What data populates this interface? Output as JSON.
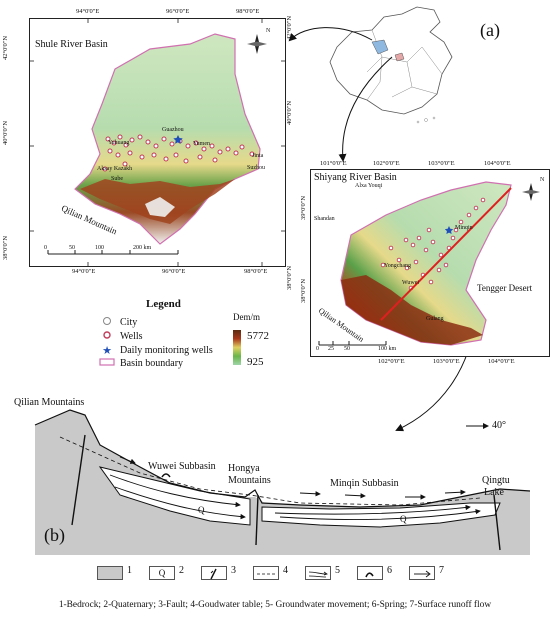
{
  "panel_labels": {
    "a": "(a)",
    "b": "(b)"
  },
  "shule": {
    "title": "Shule River Basin",
    "lon_ticks": [
      "94°0'0\"E",
      "96°0'0\"E",
      "98°0'0\"E"
    ],
    "lat_ticks": [
      "42°0'0\"N",
      "40°0'0\"N",
      "38°0'0\"N"
    ],
    "places": {
      "guazhou": "Guazhou",
      "yumen": "Yumen",
      "yuhuang": "Yuhuang",
      "jinta": "Jinta",
      "suzhou": "Suzhou",
      "akesai": "Aksay Kazakh",
      "sube": "Sube",
      "qilian": "Qilian Mountain"
    },
    "scale": {
      "zero": "0",
      "s50": "50",
      "s100": "100",
      "s200": "200 km"
    },
    "north": "N"
  },
  "shiyang": {
    "title": "Shiyang River Basin",
    "lon_ticks": [
      "101°0'0\"E",
      "102°0'0\"E",
      "103°0'0\"E",
      "104°0'0\"E"
    ],
    "lat_ticks": [
      "39°0'0\"N",
      "38°0'0\"N"
    ],
    "places": {
      "alxa": "Alxa Youqi",
      "shandan": "Shandan",
      "tengger": "Tengger Desert",
      "qilian": "Qilian Mountain",
      "wuwei": "Wuwei",
      "gulang": "Gulang",
      "yongchang": "Yongchang",
      "minqin": "Minqin"
    },
    "scale": {
      "zero": "0",
      "s25": "25",
      "s50": "50",
      "s100": "100 km"
    },
    "north": "N"
  },
  "legend": {
    "title": "Legend",
    "items": [
      "City",
      "Wells",
      "Daily monitoring wells",
      "Basin boundary"
    ],
    "dem_title": "Dem/m",
    "dem_max": "5772",
    "dem_min": "925"
  },
  "section": {
    "qilian": "Qilian Mountains",
    "wuwei": "Wuwei Subbasin",
    "hongya1": "Hongya",
    "hongya2": "Mountains",
    "minqin": "Minqin Subbasin",
    "qingtu1": "Qingtu",
    "qingtu2": "Lake",
    "q1": "Q",
    "q2": "Q",
    "direction": "40°"
  },
  "key": {
    "n1": "1",
    "n2": "2",
    "n3": "3",
    "n4": "4",
    "n5": "5",
    "n6": "6",
    "n7": "7",
    "q": "Q",
    "caption": "1-Bedrock; 2-Quaternary; 3-Fault; 4-Goudwater table; 5- Groundwater movement; 6-Spring; 7-Surface runoff flow"
  },
  "colors": {
    "dem_high": "#5a2a10",
    "dem_mid": "#c43e1a",
    "dem_low": "#9fd5a8",
    "well": "#c23b5a",
    "monitor": "#1f4fb8",
    "boundary": "#d070b0",
    "bedrock": "#c9c9c9",
    "red_line": "#e02020"
  }
}
